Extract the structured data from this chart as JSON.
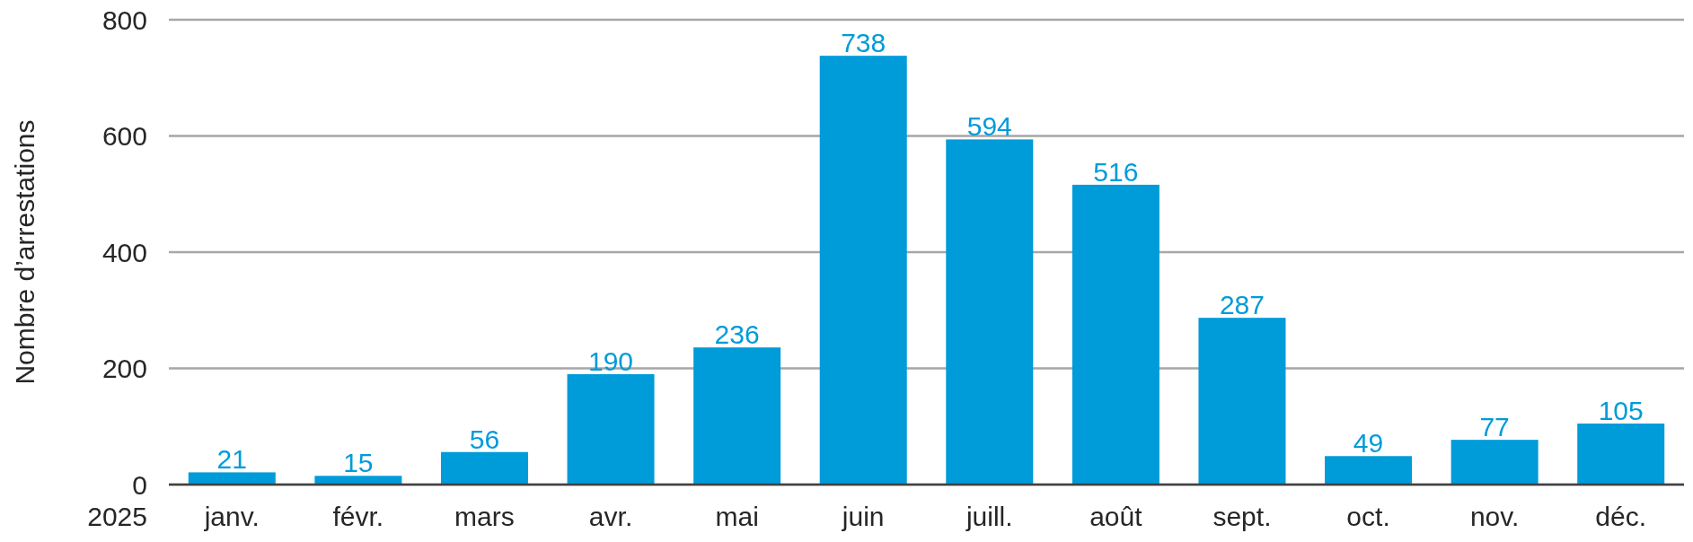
{
  "chart_data": {
    "type": "bar",
    "ylabel": "Nombre d’arrestations",
    "xlabel": "2025",
    "categories": [
      "janv.",
      "févr.",
      "mars",
      "avr.",
      "mai",
      "juin",
      "juill.",
      "août",
      "sept.",
      "oct.",
      "nov.",
      "déc."
    ],
    "values": [
      21,
      15,
      56,
      190,
      236,
      738,
      594,
      516,
      287,
      49,
      77,
      105
    ],
    "color": "#009bd9",
    "ylim": [
      0,
      800
    ],
    "yticks": [
      0,
      200,
      400,
      600,
      800
    ],
    "grid": "y",
    "data_labels": true
  }
}
